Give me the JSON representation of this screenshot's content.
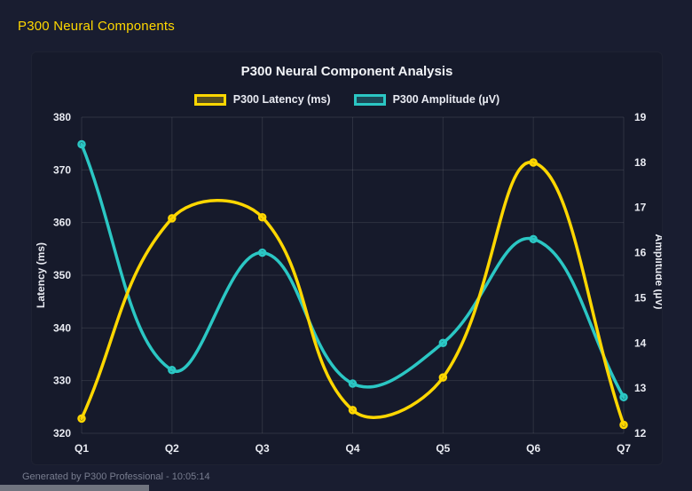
{
  "page": {
    "header": "P300 Neural Components",
    "footer": "Generated by P300 Professional - 10:05:14",
    "background_color": "#191d30",
    "card_color": "#161a2b",
    "accent_color": "#ffd700"
  },
  "chart_data": {
    "type": "line",
    "title": "P300 Neural Component Analysis",
    "categories": [
      "Q1",
      "Q2",
      "Q3",
      "Q4",
      "Q5",
      "Q6",
      "Q7"
    ],
    "series": [
      {
        "name": "P300 Latency (ms)",
        "axis": "left",
        "color": "#ffd700",
        "values": [
          322.8,
          360.8,
          361.0,
          324.4,
          330.6,
          371.4,
          321.6
        ]
      },
      {
        "name": "P300 Amplitude (µV)",
        "axis": "right",
        "color": "#2bc7c4",
        "values": [
          18.4,
          13.4,
          16.0,
          13.1,
          14.0,
          16.3,
          12.8
        ]
      }
    ],
    "left_axis": {
      "label": "Latency (ms)",
      "min": 320,
      "max": 380,
      "step": 10
    },
    "right_axis": {
      "label": "Amplitude (µV)",
      "min": 12,
      "max": 19,
      "step": 1
    },
    "grid": true,
    "legend_position": "top",
    "line_tension": 0.4,
    "grid_color": "rgba(255,255,255,0.10)",
    "tick_color": "#e9ebf2"
  }
}
